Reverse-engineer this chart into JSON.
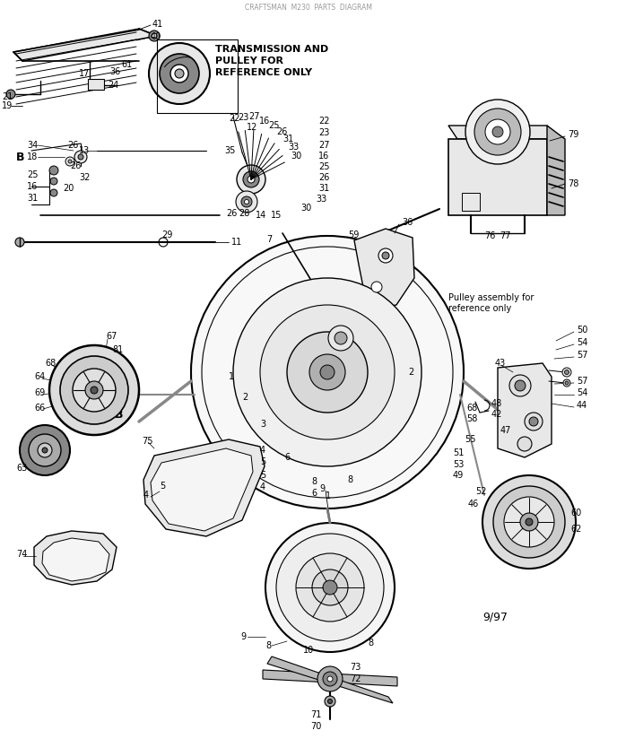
{
  "background_color": "#ffffff",
  "transmission_text_line1": "TRANSMISSION AND",
  "transmission_text_line2": "PULLEY FOR",
  "transmission_text_line3": "REFERENCE ONLY",
  "pulley_text_line1": "Pulley assembly for",
  "pulley_text_line2": "reference only",
  "date_stamp": "9/97",
  "line_color": "#000000",
  "text_color": "#000000",
  "gray1": "#cccccc",
  "gray2": "#aaaaaa",
  "gray3": "#888888",
  "gray4": "#555555",
  "gray5": "#333333",
  "light_gray": "#e8e8e8",
  "mid_gray": "#bbbbbb"
}
